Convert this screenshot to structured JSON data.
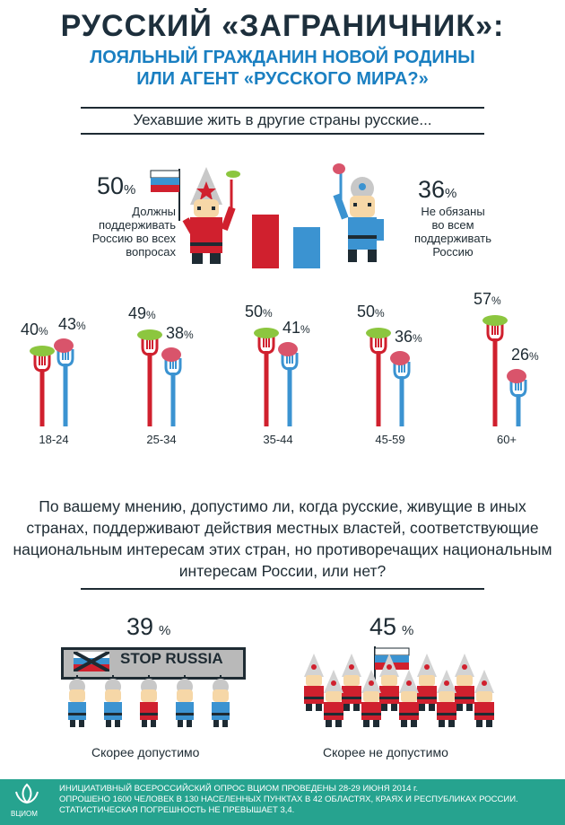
{
  "header": {
    "title": "РУССКИЙ «ЗАГРАНИЧНИК»:",
    "subtitle_line1": "ЛОЯЛЬНЫЙ ГРАЖДАНИН НОВОЙ РОДИНЫ",
    "subtitle_line2": "ИЛИ АГЕНТ «РУССКОГО МИРА?»"
  },
  "section1": {
    "heading": "Уехавшие жить в другие страны русские...",
    "left": {
      "pct": "50",
      "unit": "%",
      "lines": [
        "Должны",
        "поддерживать",
        "Россию во всех",
        "вопросах"
      ]
    },
    "right": {
      "pct": "36",
      "unit": "%",
      "lines": [
        "Не обязаны",
        "во всем",
        "поддерживать",
        "Россию"
      ]
    }
  },
  "section2": {
    "question": "По вашему мнению, допустимо ли, когда русские, живущие в иных странах, поддерживают действия местных властей, соответствующие национальным интересам этих стран, но противоречащих национальным интересам России, или нет?",
    "left": {
      "pct": "39",
      "unit": "%",
      "label": "Скорее допустимо",
      "banner": "STOP RUSSIA"
    },
    "right": {
      "pct": "45",
      "unit": "%",
      "label": "Скорее не допустимо"
    }
  },
  "footer": {
    "logo": "ВЦИОМ",
    "line1": "ИНИЦИАТИВНЫЙ ВСЕРОССИЙСКИЙ ОПРОС ВЦИОМ ПРОВЕДЕНЫ 28-29 ИЮНЯ 2014 г.",
    "line2": "ОПРОШЕНО 1600 ЧЕЛОВЕК В 130 НАСЕЛЕННЫХ ПУНКТАХ В 42 ОБЛАСТЯХ, КРАЯХ И РЕСПУБЛИКАХ РОССИИ.",
    "line3": "СТАТИСТИЧЕСКАЯ ПОГРЕШНОСТЬ НЕ ПРЕВЫШАЕТ 3,4."
  },
  "colors": {
    "red": "#d0202e",
    "blue": "#3b93d1",
    "green": "#8cc63f",
    "dark": "#1e2b33",
    "teal": "#26a38f"
  },
  "chart_data": [
    {
      "type": "bar",
      "categories": [
        "Должны поддерживать Россию во всех вопросах",
        "Не обязаны во всем поддерживать Россию"
      ],
      "values": [
        50,
        36
      ],
      "ylim": [
        0,
        100
      ]
    },
    {
      "type": "bar",
      "categories": [
        "18-24",
        "25-34",
        "35-44",
        "45-59",
        "60+"
      ],
      "series": [
        {
          "values": [
            40,
            49,
            50,
            50,
            57
          ],
          "color": "#d0202e",
          "icon": "cucumber-icon"
        },
        {
          "values": [
            43,
            38,
            41,
            36,
            26
          ],
          "color": "#3b93d1",
          "icon": "sausage-icon"
        }
      ],
      "unit": "%"
    },
    {
      "type": "bar",
      "categories": [
        "Скорее допустимо",
        "Скорее не допустимо"
      ],
      "values": [
        39,
        45
      ],
      "unit": "%"
    }
  ]
}
